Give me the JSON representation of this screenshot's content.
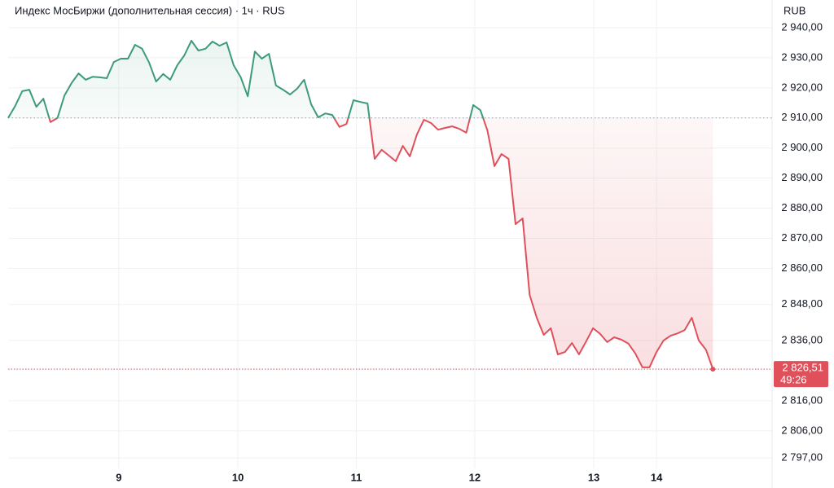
{
  "chart_data": {
    "type": "line",
    "title": "Индекс МосБиржи (дополнительная сессия) · 1ч · RUS",
    "currency": "RUB",
    "values": [
      2910,
      2914,
      2918.9,
      2919.4,
      2913.7,
      2916.4,
      2908.6,
      2910,
      2917.5,
      2921.6,
      2924.8,
      2922.7,
      2923.7,
      2923.5,
      2923.2,
      2928.6,
      2929.7,
      2929.7,
      2934.3,
      2933,
      2928.4,
      2922.1,
      2924.6,
      2922.7,
      2927.5,
      2930.8,
      2935.7,
      2932.4,
      2933,
      2935.4,
      2934,
      2935.1,
      2927.5,
      2923.5,
      2917.2,
      2932.1,
      2929.7,
      2931.3,
      2920.8,
      2919.4,
      2917.8,
      2919.7,
      2922.7,
      2914.5,
      2910.2,
      2911.5,
      2911,
      2907,
      2908,
      2915.9,
      2915.3,
      2914.8,
      2896.4,
      2899.4,
      2897.5,
      2895.6,
      2900.7,
      2897.2,
      2904.5,
      2909.4,
      2908.3,
      2906.1,
      2906.7,
      2907.2,
      2906.4,
      2905.1,
      2914.3,
      2912.6,
      2905.9,
      2894,
      2898,
      2896.4,
      2874.7,
      2876.6,
      2851.2,
      2843.6,
      2837.9,
      2840.1,
      2831.4,
      2832.2,
      2835.2,
      2831.4,
      2835.7,
      2840.1,
      2838.2,
      2835.5,
      2837.1,
      2836.3,
      2835,
      2831.7,
      2827.1,
      2827.1,
      2832.2,
      2836,
      2837.6,
      2838.4,
      2839.5,
      2843.6,
      2836,
      2833,
      2826.51
    ],
    "baseline": 2910,
    "last": {
      "value": 2826.51,
      "label": "2 826,51",
      "countdown": "49:26"
    },
    "color_above": "#3d9a7c",
    "color_below": "#e0505b",
    "xlim": [
      0,
      108.4
    ],
    "xticks": [
      {
        "value": 15.7,
        "label": "9"
      },
      {
        "value": 32.6,
        "label": "10"
      },
      {
        "value": 49.4,
        "label": "11"
      },
      {
        "value": 66.2,
        "label": "12"
      },
      {
        "value": 83.1,
        "label": "13"
      },
      {
        "value": 92,
        "label": "14"
      }
    ],
    "ylim": [
      2793.5,
      2949.2
    ],
    "yticks": [
      {
        "value": 2940,
        "label": "2 940,00"
      },
      {
        "value": 2930,
        "label": "2 930,00"
      },
      {
        "value": 2920,
        "label": "2 920,00"
      },
      {
        "value": 2910,
        "label": "2 910,00"
      },
      {
        "value": 2900,
        "label": "2 900,00"
      },
      {
        "value": 2890,
        "label": "2 890,00"
      },
      {
        "value": 2880,
        "label": "2 880,00"
      },
      {
        "value": 2870,
        "label": "2 870,00"
      },
      {
        "value": 2860,
        "label": "2 860,00"
      },
      {
        "value": 2848,
        "label": "2 848,00"
      },
      {
        "value": 2836,
        "label": "2 836,00"
      },
      {
        "value": 2816,
        "label": "2 816,00"
      },
      {
        "value": 2806,
        "label": "2 806,00"
      },
      {
        "value": 2797,
        "label": "2 797,00"
      }
    ],
    "grid": true
  }
}
